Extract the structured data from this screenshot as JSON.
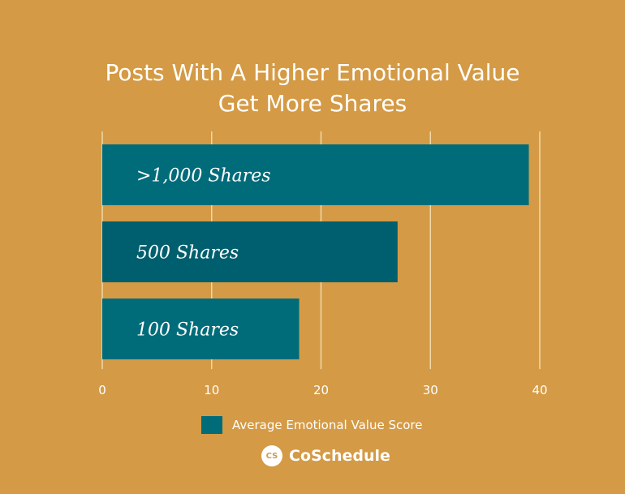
{
  "chart_data": {
    "type": "bar",
    "orientation": "horizontal",
    "title_lines": [
      "Posts With A Higher Emotional Value",
      "Get More Shares"
    ],
    "categories": [
      ">1,000 Shares",
      "500 Shares",
      "100 Shares"
    ],
    "series": [
      {
        "name": "Average Emotional Value Score",
        "values": [
          39,
          27,
          18
        ]
      }
    ],
    "xlim": [
      0,
      40
    ],
    "x_ticks": [
      "0",
      "10",
      "20",
      "30",
      "40"
    ],
    "grid": true,
    "legend": "bottom-center",
    "colors": {
      "background": "#D49A45",
      "bars": [
        "#006C7A",
        "#005F6E",
        "#006C7A"
      ],
      "grid": "#F1D7A8"
    }
  },
  "brand": {
    "logo_text": "CS",
    "name": "CoSchedule"
  }
}
